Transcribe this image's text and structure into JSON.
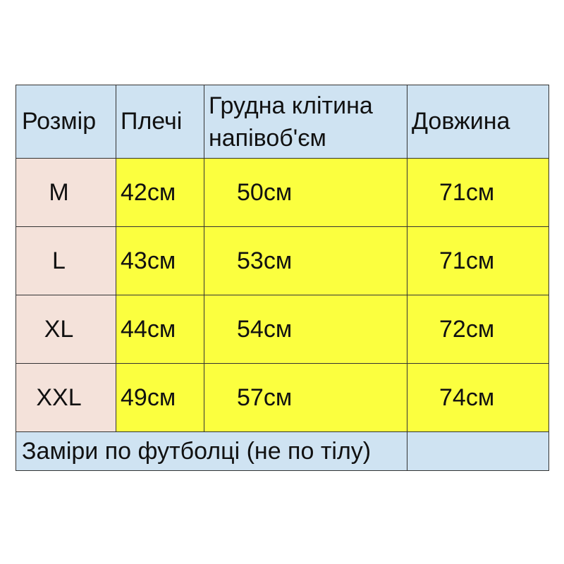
{
  "table": {
    "header": [
      "Розмір",
      "Плечі",
      "Грудна клітина напівоб'єм",
      "Довжина"
    ],
    "rows": [
      [
        "M",
        "42см",
        "50см",
        "71см"
      ],
      [
        "L",
        "43см",
        "53см",
        "71см"
      ],
      [
        "XL",
        "44см",
        "54см",
        "72см"
      ],
      [
        "XXL",
        "49см",
        "57см",
        "74см"
      ]
    ],
    "footer": "Заміри по футболці (не по тілу)"
  }
}
